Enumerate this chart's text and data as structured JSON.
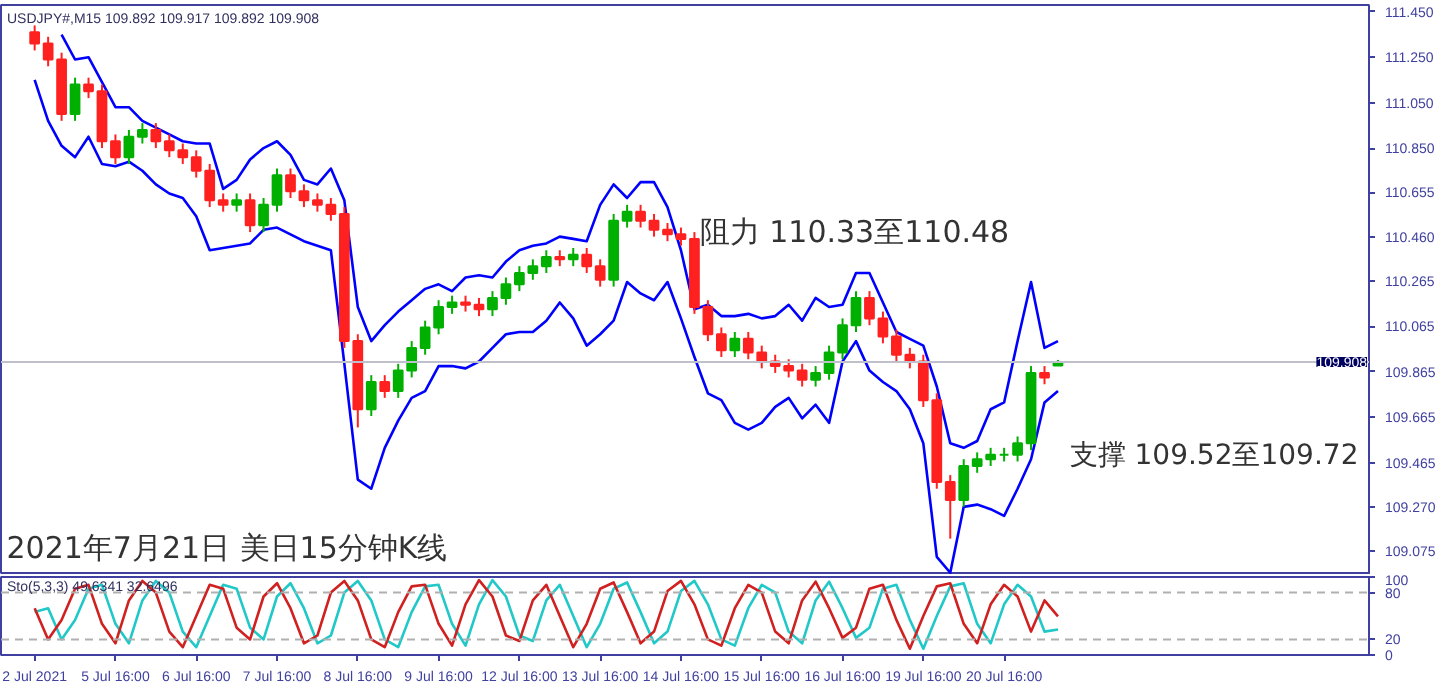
{
  "chart_data": [
    {
      "type": "candlestick",
      "title": "USDJPY#,M15  109.892 109.917 109.892 109.908",
      "categories": [
        null,
        null,
        null,
        null,
        null,
        null,
        null,
        null,
        null,
        null,
        null,
        null,
        null,
        null,
        null,
        null,
        null,
        null,
        null,
        null,
        null,
        null,
        null,
        null,
        null,
        null,
        null,
        null,
        null,
        null,
        null,
        null,
        null,
        null,
        null,
        null,
        null,
        null,
        null,
        null,
        null,
        null,
        null,
        null,
        null,
        null,
        null,
        null,
        null,
        null,
        null,
        null,
        null,
        null,
        null,
        null,
        null,
        null,
        null,
        null,
        null,
        null,
        null,
        null,
        null,
        null,
        null,
        null,
        null,
        null,
        null,
        null,
        null,
        null,
        null,
        null,
        null
      ],
      "ohlc": [
        [
          111.36,
          111.39,
          111.28,
          111.31
        ],
        [
          111.31,
          111.34,
          111.21,
          111.24
        ],
        [
          111.24,
          111.27,
          110.97,
          111.0
        ],
        [
          111.0,
          111.16,
          110.97,
          111.13
        ],
        [
          111.13,
          111.16,
          111.07,
          111.1
        ],
        [
          111.1,
          111.13,
          110.85,
          110.88
        ],
        [
          110.88,
          110.91,
          110.78,
          110.81
        ],
        [
          110.81,
          110.93,
          110.78,
          110.9
        ],
        [
          110.9,
          110.96,
          110.87,
          110.93
        ],
        [
          110.93,
          110.96,
          110.85,
          110.88
        ],
        [
          110.88,
          110.91,
          110.81,
          110.84
        ],
        [
          110.84,
          110.87,
          110.78,
          110.81
        ],
        [
          110.81,
          110.84,
          110.72,
          110.75
        ],
        [
          110.75,
          110.78,
          110.59,
          110.62
        ],
        [
          110.62,
          110.65,
          110.57,
          110.6
        ],
        [
          110.6,
          110.65,
          110.57,
          110.62
        ],
        [
          110.62,
          110.65,
          110.48,
          110.51
        ],
        [
          110.51,
          110.63,
          110.48,
          110.6
        ],
        [
          110.6,
          110.76,
          110.57,
          110.73
        ],
        [
          110.73,
          110.76,
          110.63,
          110.66
        ],
        [
          110.66,
          110.69,
          110.59,
          110.62
        ],
        [
          110.62,
          110.65,
          110.57,
          110.6
        ],
        [
          110.6,
          110.63,
          110.53,
          110.56
        ],
        [
          110.56,
          110.59,
          109.97,
          110.0
        ],
        [
          110.0,
          110.03,
          109.62,
          109.7
        ],
        [
          109.7,
          109.85,
          109.67,
          109.82
        ],
        [
          109.82,
          109.85,
          109.75,
          109.78
        ],
        [
          109.78,
          109.9,
          109.75,
          109.87
        ],
        [
          109.87,
          110.0,
          109.84,
          109.97
        ],
        [
          109.97,
          110.09,
          109.94,
          110.06
        ],
        [
          110.06,
          110.18,
          110.03,
          110.15
        ],
        [
          110.15,
          110.2,
          110.12,
          110.17
        ],
        [
          110.17,
          110.2,
          110.13,
          110.16
        ],
        [
          110.16,
          110.19,
          110.11,
          110.14
        ],
        [
          110.14,
          110.22,
          110.11,
          110.19
        ],
        [
          110.19,
          110.28,
          110.16,
          110.25
        ],
        [
          110.25,
          110.33,
          110.22,
          110.3
        ],
        [
          110.3,
          110.36,
          110.27,
          110.33
        ],
        [
          110.33,
          110.4,
          110.3,
          110.37
        ],
        [
          110.37,
          110.4,
          110.33,
          110.36
        ],
        [
          110.36,
          110.41,
          110.33,
          110.38
        ],
        [
          110.38,
          110.41,
          110.3,
          110.33
        ],
        [
          110.33,
          110.36,
          110.24,
          110.27
        ],
        [
          110.27,
          110.56,
          110.24,
          110.53
        ],
        [
          110.53,
          110.6,
          110.5,
          110.57
        ],
        [
          110.57,
          110.6,
          110.5,
          110.53
        ],
        [
          110.53,
          110.56,
          110.46,
          110.49
        ],
        [
          110.49,
          110.52,
          110.44,
          110.47
        ],
        [
          110.47,
          110.5,
          110.42,
          110.45
        ],
        [
          110.45,
          110.48,
          110.12,
          110.15
        ],
        [
          110.15,
          110.18,
          110.0,
          110.03
        ],
        [
          110.03,
          110.06,
          109.93,
          109.96
        ],
        [
          109.96,
          110.04,
          109.93,
          110.01
        ],
        [
          110.01,
          110.04,
          109.92,
          109.95
        ],
        [
          109.95,
          109.98,
          109.88,
          109.91
        ],
        [
          109.91,
          109.94,
          109.86,
          109.89
        ],
        [
          109.89,
          109.92,
          109.84,
          109.87
        ],
        [
          109.87,
          109.9,
          109.8,
          109.83
        ],
        [
          109.83,
          109.89,
          109.8,
          109.86
        ],
        [
          109.86,
          109.98,
          109.83,
          109.95
        ],
        [
          109.95,
          110.1,
          109.92,
          110.07
        ],
        [
          110.07,
          110.22,
          110.04,
          110.19
        ],
        [
          110.19,
          110.22,
          110.07,
          110.1
        ],
        [
          110.1,
          110.13,
          109.99,
          110.02
        ],
        [
          110.02,
          110.05,
          109.91,
          109.94
        ],
        [
          109.94,
          109.97,
          109.88,
          109.91
        ],
        [
          109.91,
          109.94,
          109.71,
          109.74
        ],
        [
          109.74,
          109.77,
          109.35,
          109.38
        ],
        [
          109.38,
          109.41,
          109.13,
          109.3
        ],
        [
          109.3,
          109.48,
          109.27,
          109.45
        ],
        [
          109.45,
          109.51,
          109.42,
          109.48
        ],
        [
          109.48,
          109.53,
          109.45,
          109.5
        ],
        [
          109.5,
          109.53,
          109.47,
          109.5
        ],
        [
          109.5,
          109.58,
          109.47,
          109.55
        ],
        [
          109.55,
          109.89,
          109.52,
          109.86
        ],
        [
          109.86,
          109.89,
          109.81,
          109.84
        ],
        [
          109.892,
          109.917,
          109.892,
          109.908
        ]
      ],
      "series": [
        {
          "type": "line",
          "color": "#0000ff",
          "values": [
            null,
            null,
            111.35,
            111.24,
            111.25,
            111.14,
            111.03,
            111.03,
            110.97,
            110.94,
            110.91,
            110.88,
            110.87,
            110.87,
            110.67,
            110.71,
            110.8,
            110.85,
            110.88,
            110.82,
            110.71,
            110.69,
            110.76,
            110.62,
            110.15,
            110.0,
            110.07,
            110.13,
            110.18,
            110.23,
            110.25,
            110.22,
            110.28,
            110.29,
            110.28,
            110.35,
            110.4,
            110.42,
            110.43,
            110.46,
            110.45,
            110.44,
            110.6,
            110.69,
            110.63,
            110.7,
            110.7,
            110.59,
            110.4,
            110.14,
            110.16,
            110.11,
            110.11,
            110.12,
            110.1,
            110.11,
            110.16,
            110.09,
            110.19,
            110.15,
            110.16,
            110.3,
            110.3,
            110.17,
            110.04,
            110.01,
            109.98,
            109.8,
            109.55,
            109.53,
            109.56,
            109.7,
            109.73,
            110.0,
            110.26,
            109.97,
            110.0
          ]
        },
        {
          "type": "line",
          "color": "#0000ff",
          "values": [
            111.15,
            110.97,
            110.86,
            110.81,
            110.9,
            110.78,
            110.77,
            110.79,
            110.75,
            110.69,
            110.65,
            110.63,
            110.55,
            110.4,
            110.41,
            110.42,
            110.43,
            110.49,
            110.5,
            110.47,
            110.44,
            110.42,
            110.4,
            109.9,
            109.39,
            109.35,
            109.53,
            109.65,
            109.75,
            109.78,
            109.89,
            109.89,
            109.88,
            109.91,
            109.97,
            110.03,
            110.04,
            110.04,
            110.09,
            110.17,
            110.1,
            109.98,
            110.03,
            110.09,
            110.26,
            110.21,
            110.18,
            110.26,
            110.1,
            109.93,
            109.77,
            109.74,
            109.64,
            109.61,
            109.64,
            109.71,
            109.75,
            109.66,
            109.72,
            109.64,
            109.91,
            110.0,
            109.87,
            109.82,
            109.78,
            109.7,
            109.55,
            109.05,
            108.98,
            109.27,
            109.28,
            109.26,
            109.23,
            109.35,
            109.48,
            109.73,
            109.78
          ]
        }
      ],
      "ylim": [
        108.97,
        111.48
      ],
      "yticks": [
        {
          "value": 111.45,
          "label": "111.450"
        },
        {
          "value": 111.25,
          "label": "111.250"
        },
        {
          "value": 111.05,
          "label": "111.050"
        },
        {
          "value": 110.85,
          "label": "110.850"
        },
        {
          "value": 110.655,
          "label": "110.655"
        },
        {
          "value": 110.46,
          "label": "110.460"
        },
        {
          "value": 110.265,
          "label": "110.265"
        },
        {
          "value": 110.065,
          "label": "110.065"
        },
        {
          "value": 109.865,
          "label": "109.865"
        },
        {
          "value": 109.665,
          "label": "109.665"
        },
        {
          "value": 109.465,
          "label": "109.465"
        },
        {
          "value": 109.27,
          "label": "109.270"
        },
        {
          "value": 109.075,
          "label": "109.075"
        }
      ],
      "ref_lines": [
        {
          "axis": "y",
          "value": 109.908,
          "label": "109.908",
          "color": "#c0c0cc"
        }
      ],
      "annotations": [
        "阻力 110.33至110.48",
        "支撑 109.52至109.72",
        "2021年7月21日 美日15分钟K线"
      ],
      "tick_labels": "y",
      "grid": false
    },
    {
      "type": "line",
      "title": "Sto(5,3,3) 49.6341 32.6496",
      "categories": [
        "2 Jul 2021",
        null,
        null,
        null,
        null,
        null,
        "5 Jul 16:00",
        null,
        null,
        null,
        null,
        null,
        "6 Jul 16:00",
        null,
        null,
        null,
        null,
        null,
        "7 Jul 16:00",
        null,
        null,
        null,
        null,
        null,
        "8 Jul 16:00",
        null,
        null,
        null,
        null,
        null,
        "9 Jul 16:00",
        null,
        null,
        null,
        null,
        null,
        "12 Jul 16:00",
        null,
        null,
        null,
        null,
        null,
        "13 Jul 16:00",
        null,
        null,
        null,
        null,
        null,
        "14 Jul 16:00",
        null,
        null,
        null,
        null,
        null,
        "15 Jul 16:00",
        null,
        null,
        null,
        null,
        null,
        "16 Jul 16:00",
        null,
        null,
        null,
        null,
        null,
        "19 Jul 16:00",
        null,
        null,
        null,
        null,
        null,
        "20 Jul 16:00",
        null,
        null,
        null,
        null
      ],
      "series": [
        {
          "color": "#20c8c8",
          "values": [
            55,
            60,
            20,
            45,
            85,
            90,
            40,
            15,
            70,
            95,
            80,
            30,
            10,
            50,
            90,
            85,
            35,
            20,
            75,
            92,
            60,
            15,
            25,
            80,
            95,
            70,
            20,
            10,
            55,
            88,
            90,
            40,
            12,
            65,
            96,
            75,
            25,
            18,
            70,
            90,
            50,
            10,
            40,
            85,
            93,
            55,
            15,
            30,
            82,
            95,
            65,
            20,
            12,
            60,
            90,
            80,
            30,
            15,
            70,
            94,
            60,
            22,
            35,
            85,
            90,
            45,
            8,
            50,
            88,
            92,
            40,
            15,
            65,
            90,
            75,
            30,
            32.6496
          ]
        },
        {
          "color": "#d02020",
          "values": [
            60,
            20,
            45,
            85,
            90,
            40,
            15,
            70,
            95,
            80,
            30,
            10,
            50,
            90,
            85,
            35,
            20,
            75,
            92,
            60,
            15,
            25,
            80,
            95,
            70,
            20,
            10,
            55,
            88,
            90,
            40,
            12,
            65,
            96,
            75,
            25,
            18,
            70,
            90,
            50,
            10,
            40,
            85,
            93,
            55,
            15,
            30,
            82,
            95,
            65,
            20,
            12,
            60,
            90,
            80,
            30,
            15,
            70,
            94,
            60,
            22,
            35,
            85,
            90,
            45,
            8,
            50,
            88,
            92,
            40,
            15,
            65,
            90,
            75,
            30,
            70,
            49.6341
          ]
        }
      ],
      "ylim": [
        0,
        100
      ],
      "yticks": [
        0,
        20,
        80,
        100
      ],
      "ref_lines": [
        {
          "axis": "y",
          "value": 80,
          "line_style": "dashed",
          "color": "#b0b0b0"
        },
        {
          "axis": "y",
          "value": 20,
          "line_style": "dashed",
          "color": "#b0b0b0"
        }
      ],
      "grid": false
    }
  ]
}
